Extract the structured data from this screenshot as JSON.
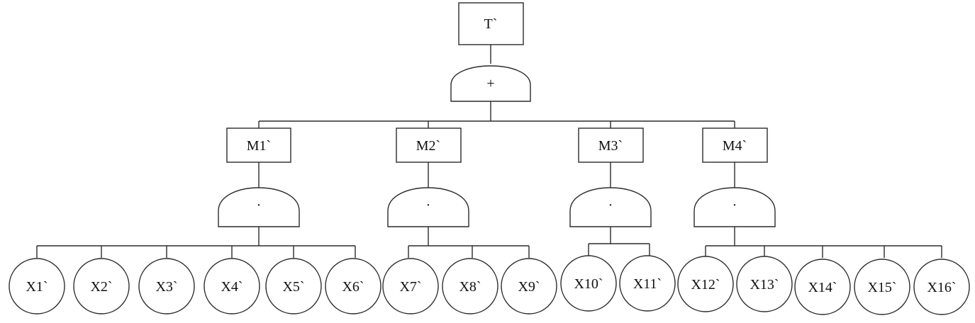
{
  "top_event": {
    "label": "T`"
  },
  "top_gate": {
    "symbol": "+"
  },
  "intermediate_events": [
    {
      "label": "M1`",
      "gate_symbol": "·"
    },
    {
      "label": "M2`",
      "gate_symbol": "·"
    },
    {
      "label": "M3`",
      "gate_symbol": "·"
    },
    {
      "label": "M4`",
      "gate_symbol": "·"
    }
  ],
  "basic_events": [
    {
      "label": "X1`"
    },
    {
      "label": "X2`"
    },
    {
      "label": "X3`"
    },
    {
      "label": "X4`"
    },
    {
      "label": "X5`"
    },
    {
      "label": "X6`"
    },
    {
      "label": "X7`"
    },
    {
      "label": "X8`"
    },
    {
      "label": "X9`"
    },
    {
      "label": "X10`"
    },
    {
      "label": "X11`"
    },
    {
      "label": "X12`"
    },
    {
      "label": "X13`"
    },
    {
      "label": "X14`"
    },
    {
      "label": "X15`"
    },
    {
      "label": "X16`"
    }
  ]
}
